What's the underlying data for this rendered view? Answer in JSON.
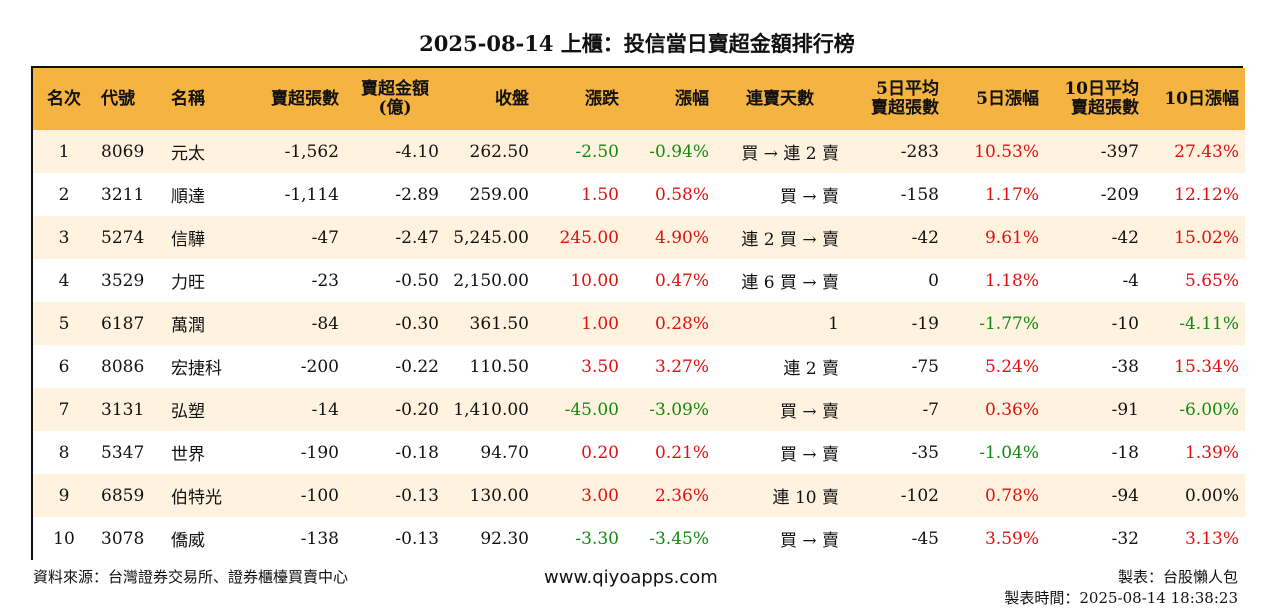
{
  "title": "2025-08-14 上櫃：投信當日賣超金額排行榜",
  "headers": {
    "rank": "名次",
    "code": "代號",
    "name": "名稱",
    "sell_lots": "賣超張數",
    "sell_amt_l1": "賣超金額",
    "sell_amt_l2": "(億)",
    "close": "收盤",
    "change": "漲跌",
    "pct": "漲幅",
    "streak": "連賣天數",
    "avg5_l1": "5日平均",
    "avg5_l2": "賣超張數",
    "pct5": "5日漲幅",
    "avg10_l1": "10日平均",
    "avg10_l2": "賣超張數",
    "pct10": "10日漲幅"
  },
  "rows": [
    {
      "rank": "1",
      "code": "8069",
      "name": "元太",
      "lots": "-1,562",
      "amt": "-4.10",
      "close": "262.50",
      "chg": "-2.50",
      "pct": "-0.94%",
      "streak": "買 → 連 2 賣",
      "avg5": "-283",
      "pct5": "10.53%",
      "avg10": "-397",
      "pct10": "27.43%"
    },
    {
      "rank": "2",
      "code": "3211",
      "name": "順達",
      "lots": "-1,114",
      "amt": "-2.89",
      "close": "259.00",
      "chg": "1.50",
      "pct": "0.58%",
      "streak": "買 → 賣",
      "avg5": "-158",
      "pct5": "1.17%",
      "avg10": "-209",
      "pct10": "12.12%"
    },
    {
      "rank": "3",
      "code": "5274",
      "name": "信驊",
      "lots": "-47",
      "amt": "-2.47",
      "close": "5,245.00",
      "chg": "245.00",
      "pct": "4.90%",
      "streak": "連 2 買 → 賣",
      "avg5": "-42",
      "pct5": "9.61%",
      "avg10": "-42",
      "pct10": "15.02%"
    },
    {
      "rank": "4",
      "code": "3529",
      "name": "力旺",
      "lots": "-23",
      "amt": "-0.50",
      "close": "2,150.00",
      "chg": "10.00",
      "pct": "0.47%",
      "streak": "連 6 買 → 賣",
      "avg5": "0",
      "pct5": "1.18%",
      "avg10": "-4",
      "pct10": "5.65%"
    },
    {
      "rank": "5",
      "code": "6187",
      "name": "萬潤",
      "lots": "-84",
      "amt": "-0.30",
      "close": "361.50",
      "chg": "1.00",
      "pct": "0.28%",
      "streak": "1",
      "avg5": "-19",
      "pct5": "-1.77%",
      "avg10": "-10",
      "pct10": "-4.11%"
    },
    {
      "rank": "6",
      "code": "8086",
      "name": "宏捷科",
      "lots": "-200",
      "amt": "-0.22",
      "close": "110.50",
      "chg": "3.50",
      "pct": "3.27%",
      "streak": "連 2 賣",
      "avg5": "-75",
      "pct5": "5.24%",
      "avg10": "-38",
      "pct10": "15.34%"
    },
    {
      "rank": "7",
      "code": "3131",
      "name": "弘塑",
      "lots": "-14",
      "amt": "-0.20",
      "close": "1,410.00",
      "chg": "-45.00",
      "pct": "-3.09%",
      "streak": "買 → 賣",
      "avg5": "-7",
      "pct5": "0.36%",
      "avg10": "-91",
      "pct10": "-6.00%"
    },
    {
      "rank": "8",
      "code": "5347",
      "name": "世界",
      "lots": "-190",
      "amt": "-0.18",
      "close": "94.70",
      "chg": "0.20",
      "pct": "0.21%",
      "streak": "買 → 賣",
      "avg5": "-35",
      "pct5": "-1.04%",
      "avg10": "-18",
      "pct10": "1.39%"
    },
    {
      "rank": "9",
      "code": "6859",
      "name": "伯特光",
      "lots": "-100",
      "amt": "-0.13",
      "close": "130.00",
      "chg": "3.00",
      "pct": "2.36%",
      "streak": "連 10 賣",
      "avg5": "-102",
      "pct5": "0.78%",
      "avg10": "-94",
      "pct10": "0.00%"
    },
    {
      "rank": "10",
      "code": "3078",
      "name": "僑威",
      "lots": "-138",
      "amt": "-0.13",
      "close": "92.30",
      "chg": "-3.30",
      "pct": "-3.45%",
      "streak": "買 → 賣",
      "avg5": "-45",
      "pct5": "3.59%",
      "avg10": "-32",
      "pct10": "3.13%"
    }
  ],
  "colors": {
    "up": "#e01010",
    "down": "#118a11",
    "header": "#f5b342",
    "stripe": "#fff3df"
  },
  "footer": {
    "source": "資料來源：台灣證券交易所、證券櫃檯買賣中心",
    "site": "www.qiyoapps.com",
    "maker": "製表：台股懶人包",
    "time": "製表時間：2025-08-14 18:38:23"
  }
}
